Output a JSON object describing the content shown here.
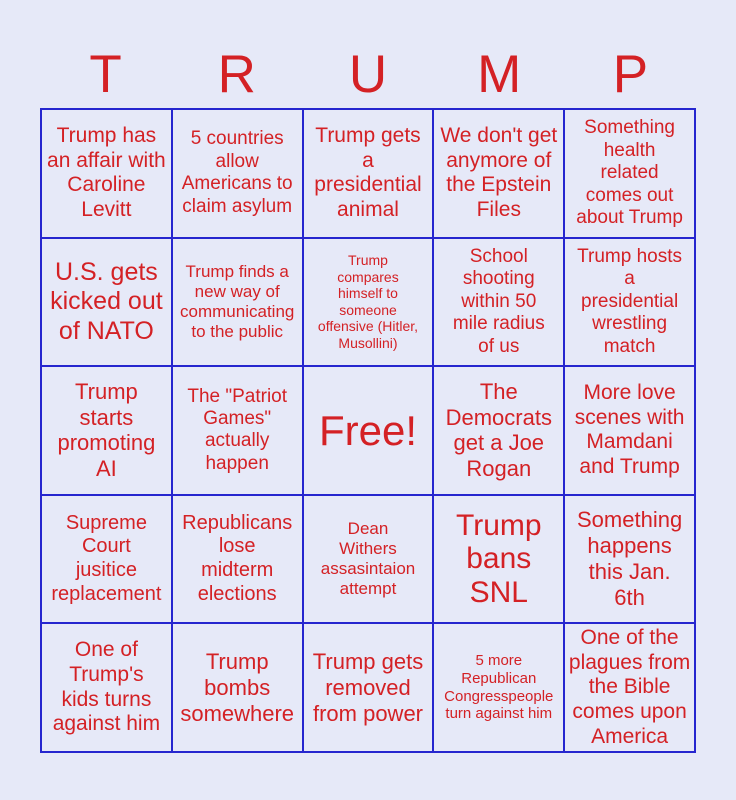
{
  "colors": {
    "background": "#e6e9f8",
    "text_red": "#d42125",
    "border_blue": "#2626cf"
  },
  "title": {
    "word": "TRUMP",
    "letters": [
      "T",
      "R",
      "U",
      "M",
      "P"
    ]
  },
  "grid": {
    "rows": 5,
    "cols": 5,
    "free_cell_index": 12,
    "cells": [
      {
        "text": "Trump has\nan affair with\nCaroline\nLevitt"
      },
      {
        "text": "5 countries\nallow\nAmericans to\nclaim asylum"
      },
      {
        "text": "Trump gets\na\npresidential\nanimal"
      },
      {
        "text": "We don't get\nanymore of\nthe Epstein\nFiles"
      },
      {
        "text": "Something\nhealth\nrelated\ncomes out\nabout Trump"
      },
      {
        "text": "U.S. gets\nkicked out\nof NATO"
      },
      {
        "text": "Trump finds a\nnew way of\ncommunicating\nto the public"
      },
      {
        "text": "Trump\ncompares\nhimself to\nsomeone\noffensive (Hitler,\nMusollini)"
      },
      {
        "text": "School\nshooting\nwithin 50\nmile radius\nof us"
      },
      {
        "text": "Trump hosts\na\npresidential\nwrestling\nmatch"
      },
      {
        "text": "Trump\nstarts\npromoting\nAI"
      },
      {
        "text": "The \"Patriot\nGames\"\nactually\nhappen"
      },
      {
        "text": "Free!"
      },
      {
        "text": "The\nDemocrats\nget a Joe\nRogan"
      },
      {
        "text": "More love\nscenes with\nMamdani\nand Trump"
      },
      {
        "text": "Supreme\nCourt\njusitice\nreplacement"
      },
      {
        "text": "Republicans\nlose\nmidterm\nelections"
      },
      {
        "text": "Dean\nWithers\nassasintaion\nattempt"
      },
      {
        "text": "Trump\nbans\nSNL"
      },
      {
        "text": "Something\nhappens\nthis Jan.\n6th"
      },
      {
        "text": "One of\nTrump's\nkids turns\nagainst him"
      },
      {
        "text": "Trump\nbombs\nsomewhere"
      },
      {
        "text": "Trump gets\nremoved\nfrom power"
      },
      {
        "text": "5 more\nRepublican\nCongresspeople\nturn against him"
      },
      {
        "text": "One of the\nplagues from\nthe Bible\ncomes upon\nAmerica"
      }
    ]
  }
}
